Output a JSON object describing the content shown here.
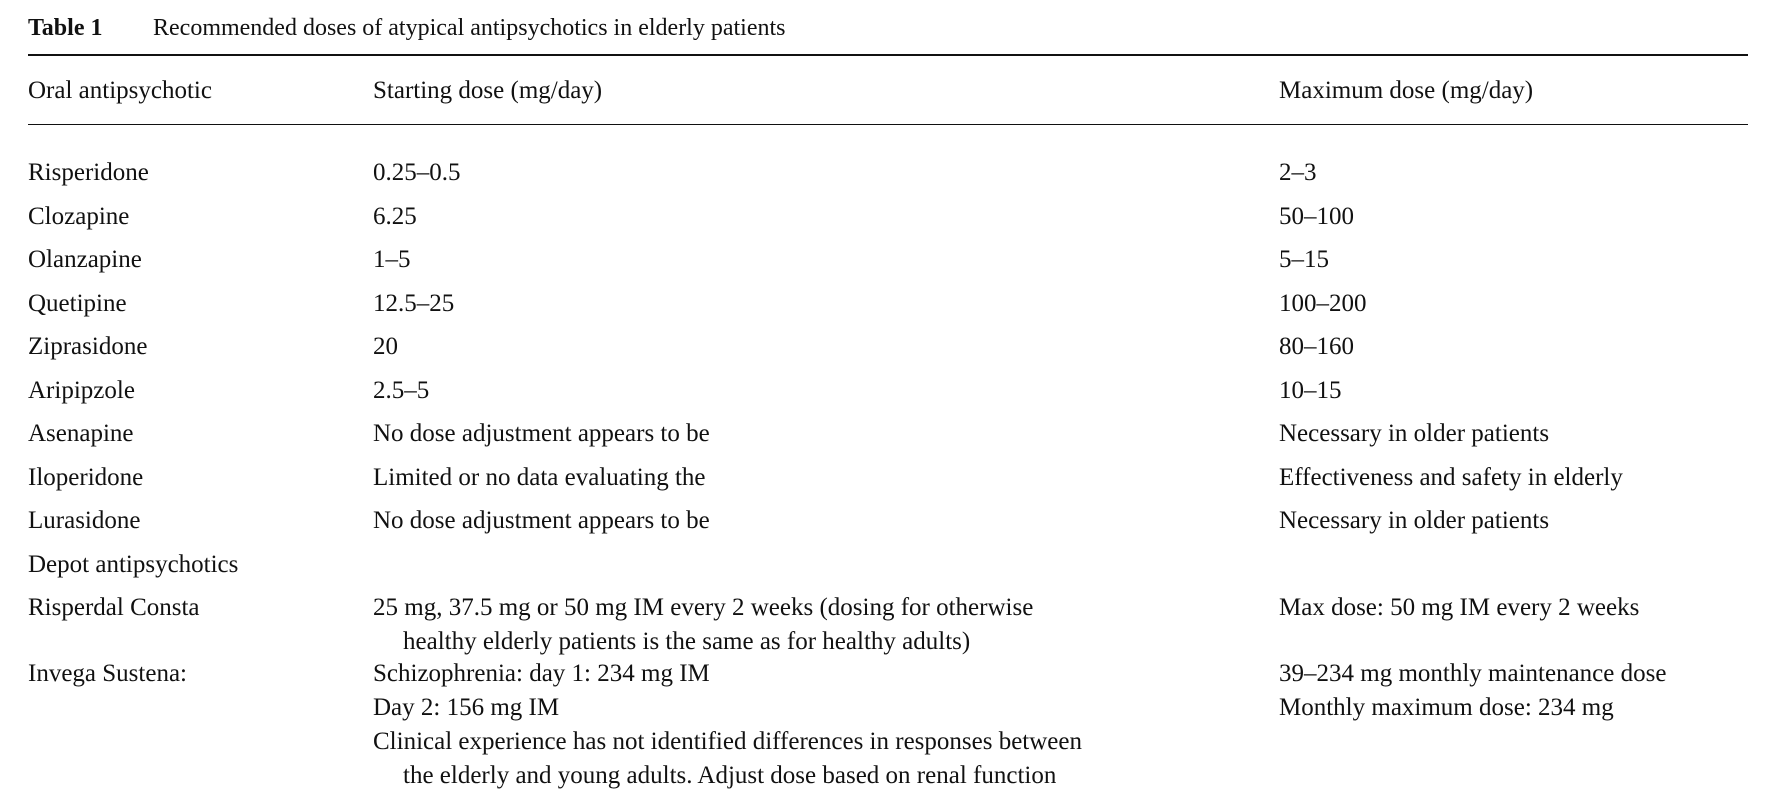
{
  "caption": {
    "label": "Table 1",
    "title": "Recommended doses of atypical antipsychotics in elderly patients"
  },
  "headers": {
    "col1": "Oral antipsychotic",
    "col2": "Starting dose (mg/day)",
    "col3": "Maximum dose (mg/day)"
  },
  "rows": [
    {
      "name": "Risperidone",
      "start": "0.25–0.5",
      "max": "2–3"
    },
    {
      "name": "Clozapine",
      "start": "6.25",
      "max": "50–100"
    },
    {
      "name": "Olanzapine",
      "start": "1–5",
      "max": "5–15"
    },
    {
      "name": "Quetipine",
      "start": "12.5–25",
      "max": "100–200"
    },
    {
      "name": "Ziprasidone",
      "start": "20",
      "max": "80–160"
    },
    {
      "name": "Aripipzole",
      "start": "2.5–5",
      "max": "10–15"
    },
    {
      "name": "Asenapine",
      "start": "No dose adjustment appears to be",
      "max": "Necessary in older patients"
    },
    {
      "name": "Iloperidone",
      "start": "Limited or no data evaluating the",
      "max": "Effectiveness and safety in elderly"
    },
    {
      "name": "Lurasidone",
      "start": "No dose adjustment appears to be",
      "max": "Necessary in older patients"
    }
  ],
  "depot_section": {
    "label": "Depot antipsychotics"
  },
  "depot_rows": [
    {
      "name": "Risperdal Consta",
      "start_lines": [
        "25 mg, 37.5 mg or 50 mg IM every 2 weeks (dosing for otherwise",
        "healthy elderly patients is the same as for healthy adults)"
      ],
      "max_lines": [
        "Max dose: 50 mg IM every 2 weeks"
      ]
    },
    {
      "name": "Invega Sustena:",
      "start_lines": [
        "Schizophrenia: day 1: 234 mg IM",
        "Day 2: 156 mg IM",
        "Clinical experience has not identified differences in responses between",
        "the elderly and young adults. Adjust dose based on renal function"
      ],
      "max_lines": [
        "39–234 mg monthly maintenance dose",
        "Monthly maximum dose: 234 mg"
      ]
    }
  ]
}
